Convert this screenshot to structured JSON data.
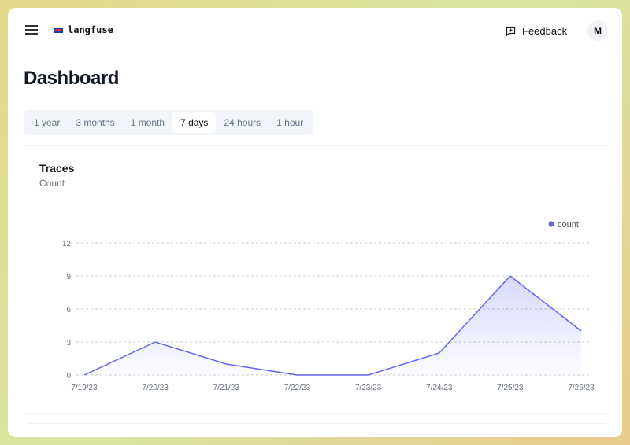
{
  "header": {
    "logo": "langfuse",
    "feedback": "Feedback",
    "avatar": "M"
  },
  "page_title": "Dashboard",
  "tabs": [
    {
      "label": "1 year"
    },
    {
      "label": "3 months"
    },
    {
      "label": "1 month"
    },
    {
      "label": "7 days",
      "active": true
    },
    {
      "label": "24 hours"
    },
    {
      "label": "1 hour"
    }
  ],
  "card": {
    "title": "Traces",
    "subtitle": "Count"
  },
  "chart_data": {
    "type": "area",
    "categories": [
      "7/19/23",
      "7/20/23",
      "7/21/23",
      "7/22/23",
      "7/23/23",
      "7/24/23",
      "7/25/23",
      "7/26/23"
    ],
    "series": [
      {
        "name": "count",
        "values": [
          0,
          3,
          1,
          0,
          0,
          2,
          9,
          4
        ],
        "color": "#6366f1"
      }
    ],
    "yticks": [
      0,
      3,
      6,
      9,
      12
    ],
    "ylim": [
      0,
      12
    ],
    "grid": true,
    "legend": "top-right"
  }
}
